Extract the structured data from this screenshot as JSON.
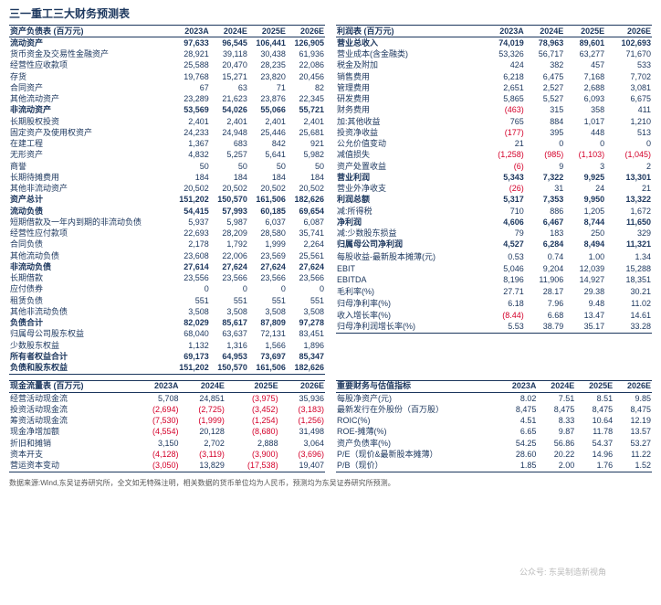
{
  "title": "三一重工三大财务预测表",
  "years": [
    "2023A",
    "2024E",
    "2025E",
    "2026E"
  ],
  "balance_sheet": {
    "header": "资产负债表 (百万元)",
    "rows": [
      {
        "label": "流动资产",
        "vals": [
          "97,633",
          "96,545",
          "106,441",
          "126,905"
        ],
        "section": true
      },
      {
        "label": "货币资金及交易性金融资产",
        "vals": [
          "28,921",
          "39,118",
          "30,438",
          "61,936"
        ]
      },
      {
        "label": "经营性应收款项",
        "vals": [
          "25,588",
          "20,470",
          "28,235",
          "22,086"
        ]
      },
      {
        "label": "存货",
        "vals": [
          "19,768",
          "15,271",
          "23,820",
          "20,456"
        ]
      },
      {
        "label": "合同资产",
        "vals": [
          "67",
          "63",
          "71",
          "82"
        ]
      },
      {
        "label": "其他流动资产",
        "vals": [
          "23,289",
          "21,623",
          "23,876",
          "22,345"
        ]
      },
      {
        "label": "非流动资产",
        "vals": [
          "53,569",
          "54,026",
          "55,066",
          "55,721"
        ],
        "section": true
      },
      {
        "label": "长期股权投资",
        "vals": [
          "2,401",
          "2,401",
          "2,401",
          "2,401"
        ]
      },
      {
        "label": "固定资产及使用权资产",
        "vals": [
          "24,233",
          "24,948",
          "25,446",
          "25,681"
        ]
      },
      {
        "label": "在建工程",
        "vals": [
          "1,367",
          "683",
          "842",
          "921"
        ]
      },
      {
        "label": "无形资产",
        "vals": [
          "4,832",
          "5,257",
          "5,641",
          "5,982"
        ]
      },
      {
        "label": "商誉",
        "vals": [
          "50",
          "50",
          "50",
          "50"
        ]
      },
      {
        "label": "长期待摊费用",
        "vals": [
          "184",
          "184",
          "184",
          "184"
        ]
      },
      {
        "label": "其他非流动资产",
        "vals": [
          "20,502",
          "20,502",
          "20,502",
          "20,502"
        ]
      },
      {
        "label": "资产总计",
        "vals": [
          "151,202",
          "150,570",
          "161,506",
          "182,626"
        ],
        "section": true
      },
      {
        "label": "流动负债",
        "vals": [
          "54,415",
          "57,993",
          "60,185",
          "69,654"
        ],
        "section": true
      },
      {
        "label": "短期借款及一年内到期的非流动负债",
        "vals": [
          "5,937",
          "5,987",
          "6,037",
          "6,087"
        ]
      },
      {
        "label": "经营性应付款项",
        "vals": [
          "22,693",
          "28,209",
          "28,580",
          "35,741"
        ]
      },
      {
        "label": "合同负债",
        "vals": [
          "2,178",
          "1,792",
          "1,999",
          "2,264"
        ]
      },
      {
        "label": "其他流动负债",
        "vals": [
          "23,608",
          "22,006",
          "23,569",
          "25,561"
        ]
      },
      {
        "label": "非流动负债",
        "vals": [
          "27,614",
          "27,624",
          "27,624",
          "27,624"
        ],
        "section": true
      },
      {
        "label": "长期借款",
        "vals": [
          "23,556",
          "23,566",
          "23,566",
          "23,566"
        ]
      },
      {
        "label": "应付债券",
        "vals": [
          "0",
          "0",
          "0",
          "0"
        ]
      },
      {
        "label": "租赁负债",
        "vals": [
          "551",
          "551",
          "551",
          "551"
        ]
      },
      {
        "label": "其他非流动负债",
        "vals": [
          "3,508",
          "3,508",
          "3,508",
          "3,508"
        ]
      },
      {
        "label": "负债合计",
        "vals": [
          "82,029",
          "85,617",
          "87,809",
          "97,278"
        ],
        "section": true
      },
      {
        "label": "归属母公司股东权益",
        "vals": [
          "68,040",
          "63,637",
          "72,131",
          "83,451"
        ]
      },
      {
        "label": "少数股东权益",
        "vals": [
          "1,132",
          "1,316",
          "1,566",
          "1,896"
        ]
      },
      {
        "label": "所有者权益合计",
        "vals": [
          "69,173",
          "64,953",
          "73,697",
          "85,347"
        ],
        "section": true
      },
      {
        "label": "负债和股东权益",
        "vals": [
          "151,202",
          "150,570",
          "161,506",
          "182,626"
        ],
        "section": true
      }
    ]
  },
  "income": {
    "header": "利润表 (百万元)",
    "rows": [
      {
        "label": "营业总收入",
        "vals": [
          "74,019",
          "78,963",
          "89,601",
          "102,693"
        ],
        "section": true
      },
      {
        "label": "营业成本(含金融类)",
        "vals": [
          "53,326",
          "56,717",
          "63,277",
          "71,670"
        ]
      },
      {
        "label": "税金及附加",
        "vals": [
          "424",
          "382",
          "457",
          "533"
        ]
      },
      {
        "label": "销售费用",
        "vals": [
          "6,218",
          "6,475",
          "7,168",
          "7,702"
        ]
      },
      {
        "label": "管理费用",
        "vals": [
          "2,651",
          "2,527",
          "2,688",
          "3,081"
        ]
      },
      {
        "label": "研发费用",
        "vals": [
          "5,865",
          "5,527",
          "6,093",
          "6,675"
        ]
      },
      {
        "label": "财务费用",
        "vals": [
          "(463)",
          "315",
          "358",
          "411"
        ],
        "neg": [
          0
        ]
      },
      {
        "label": "加:其他收益",
        "vals": [
          "765",
          "884",
          "1,017",
          "1,210"
        ]
      },
      {
        "label": "投资净收益",
        "vals": [
          "(177)",
          "395",
          "448",
          "513"
        ],
        "neg": [
          0
        ]
      },
      {
        "label": "公允价值变动",
        "vals": [
          "21",
          "0",
          "0",
          "0"
        ]
      },
      {
        "label": "减值损失",
        "vals": [
          "(1,258)",
          "(985)",
          "(1,103)",
          "(1,045)"
        ],
        "neg": [
          0,
          1,
          2,
          3
        ]
      },
      {
        "label": "资产处置收益",
        "vals": [
          "(6)",
          "9",
          "3",
          "2"
        ],
        "neg": [
          0
        ]
      },
      {
        "label": "营业利润",
        "vals": [
          "5,343",
          "7,322",
          "9,925",
          "13,301"
        ],
        "section": true
      },
      {
        "label": "营业外净收支",
        "vals": [
          "(26)",
          "31",
          "24",
          "21"
        ],
        "neg": [
          0
        ]
      },
      {
        "label": "利润总额",
        "vals": [
          "5,317",
          "7,353",
          "9,950",
          "13,322"
        ],
        "section": true
      },
      {
        "label": "减:所得税",
        "vals": [
          "710",
          "886",
          "1,205",
          "1,672"
        ]
      },
      {
        "label": "净利润",
        "vals": [
          "4,606",
          "6,467",
          "8,744",
          "11,650"
        ],
        "section": true
      },
      {
        "label": "减:少数股东损益",
        "vals": [
          "79",
          "183",
          "250",
          "329"
        ]
      },
      {
        "label": "归属母公司净利润",
        "vals": [
          "4,527",
          "6,284",
          "8,494",
          "11,321"
        ],
        "section": true
      },
      {
        "label": "",
        "vals": [
          "",
          "",
          "",
          ""
        ]
      },
      {
        "label": "每股收益-最新股本摊薄(元)",
        "vals": [
          "0.53",
          "0.74",
          "1.00",
          "1.34"
        ]
      },
      {
        "label": "",
        "vals": [
          "",
          "",
          "",
          ""
        ]
      },
      {
        "label": "EBIT",
        "vals": [
          "5,046",
          "9,204",
          "12,039",
          "15,288"
        ]
      },
      {
        "label": "EBITDA",
        "vals": [
          "8,196",
          "11,906",
          "14,927",
          "18,351"
        ]
      },
      {
        "label": "",
        "vals": [
          "",
          "",
          "",
          ""
        ]
      },
      {
        "label": "毛利率(%)",
        "vals": [
          "27.71",
          "28.17",
          "29.38",
          "30.21"
        ]
      },
      {
        "label": "归母净利率(%)",
        "vals": [
          "6.18",
          "7.96",
          "9.48",
          "11.02"
        ]
      },
      {
        "label": "",
        "vals": [
          "",
          "",
          "",
          ""
        ]
      },
      {
        "label": "收入增长率(%)",
        "vals": [
          "(8.44)",
          "6.68",
          "13.47",
          "14.61"
        ],
        "neg": [
          0
        ]
      },
      {
        "label": "归母净利润增长率(%)",
        "vals": [
          "5.53",
          "38.79",
          "35.17",
          "33.28"
        ]
      }
    ]
  },
  "cashflow": {
    "header": "现金流量表 (百万元)",
    "rows": [
      {
        "label": "经营活动现金流",
        "vals": [
          "5,708",
          "24,851",
          "(3,975)",
          "35,936"
        ],
        "neg": [
          2
        ]
      },
      {
        "label": "投资活动现金流",
        "vals": [
          "(2,694)",
          "(2,725)",
          "(3,452)",
          "(3,183)"
        ],
        "neg": [
          0,
          1,
          2,
          3
        ]
      },
      {
        "label": "筹资活动现金流",
        "vals": [
          "(7,530)",
          "(1,999)",
          "(1,254)",
          "(1,256)"
        ],
        "neg": [
          0,
          1,
          2,
          3
        ]
      },
      {
        "label": "现金净增加额",
        "vals": [
          "(4,554)",
          "20,128",
          "(8,680)",
          "31,498"
        ],
        "neg": [
          0,
          2
        ]
      },
      {
        "label": "折旧和摊销",
        "vals": [
          "3,150",
          "2,702",
          "2,888",
          "3,064"
        ]
      },
      {
        "label": "资本开支",
        "vals": [
          "(4,128)",
          "(3,119)",
          "(3,900)",
          "(3,696)"
        ],
        "neg": [
          0,
          1,
          2,
          3
        ]
      },
      {
        "label": "营运资本变动",
        "vals": [
          "(3,050)",
          "13,829",
          "(17,538)",
          "19,407"
        ],
        "neg": [
          0,
          2
        ]
      }
    ]
  },
  "metrics": {
    "header": "重要财务与估值指标",
    "rows": [
      {
        "label": "每股净资产(元)",
        "vals": [
          "8.02",
          "7.51",
          "8.51",
          "9.85"
        ]
      },
      {
        "label": "最新发行在外股份（百万股）",
        "vals": [
          "8,475",
          "8,475",
          "8,475",
          "8,475"
        ]
      },
      {
        "label": "ROIC(%)",
        "vals": [
          "4.51",
          "8.33",
          "10.64",
          "12.19"
        ]
      },
      {
        "label": "ROE-摊薄(%)",
        "vals": [
          "6.65",
          "9.87",
          "11.78",
          "13.57"
        ]
      },
      {
        "label": "资产负债率(%)",
        "vals": [
          "54.25",
          "56.86",
          "54.37",
          "53.27"
        ]
      },
      {
        "label": "P/E（现价&最新股本摊薄）",
        "vals": [
          "28.60",
          "20.22",
          "14.96",
          "11.22"
        ]
      },
      {
        "label": "P/B（现价）",
        "vals": [
          "1.85",
          "2.00",
          "1.76",
          "1.52"
        ]
      }
    ]
  },
  "footnote": "数据来源:Wind,东吴证券研究所，全文如无特殊注明，相关数据的货币单位均为人民币，预测均为东吴证券研究所预测。",
  "watermark": "公众号: 东吴制造新视角"
}
